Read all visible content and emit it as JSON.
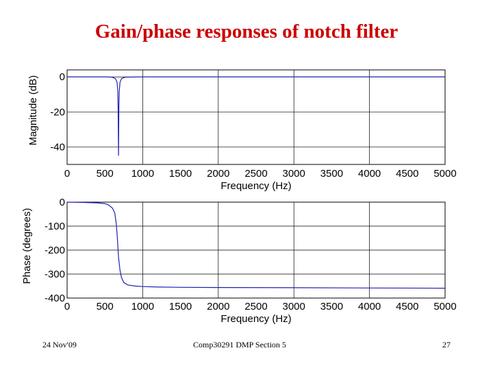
{
  "slide": {
    "title": "Gain/phase responses of notch filter",
    "footer_left": "24 Nov'09",
    "footer_center": "Comp30291 DMP Section 5",
    "footer_right": "27"
  },
  "chart_data": [
    {
      "type": "line",
      "title": "",
      "xlabel": "Frequency (Hz)",
      "ylabel": "Magnitude (dB)",
      "xlim": [
        0,
        5000
      ],
      "ylim": [
        -50,
        4
      ],
      "xticks": [
        0,
        500,
        1000,
        1500,
        2000,
        2500,
        3000,
        3500,
        4000,
        4500,
        5000
      ],
      "yticks": [
        0,
        -20,
        -40
      ],
      "grid": true,
      "line_color": "#1f1fb4",
      "series": [
        {
          "x": [
            0,
            500,
            600,
            640,
            660,
            670,
            675,
            680,
            685,
            690,
            700,
            720,
            760,
            1000,
            2000,
            3000,
            4000,
            5000
          ],
          "values": [
            0,
            0,
            -0.2,
            -1,
            -3,
            -8,
            -18,
            -45,
            -18,
            -8,
            -3,
            -1,
            -0.2,
            0,
            0,
            0,
            0,
            0
          ]
        }
      ]
    },
    {
      "type": "line",
      "title": "",
      "xlabel": "Frequency (Hz)",
      "ylabel": "Phase (degrees)",
      "xlim": [
        0,
        5000
      ],
      "ylim": [
        -400,
        0
      ],
      "xticks": [
        0,
        500,
        1000,
        1500,
        2000,
        2500,
        3000,
        3500,
        4000,
        4500,
        5000
      ],
      "yticks": [
        0,
        -100,
        -200,
        -300,
        -400
      ],
      "grid": true,
      "line_color": "#1f1fb4",
      "series": [
        {
          "x": [
            0,
            200,
            400,
            500,
            550,
            600,
            630,
            650,
            665,
            680,
            700,
            720,
            750,
            800,
            900,
            1000,
            1200,
            1500,
            2000,
            3000,
            4000,
            5000
          ],
          "values": [
            0,
            -1,
            -3,
            -6,
            -12,
            -25,
            -45,
            -90,
            -150,
            -230,
            -285,
            -315,
            -335,
            -345,
            -350,
            -352,
            -354,
            -355,
            -356,
            -357,
            -358,
            -359
          ]
        }
      ]
    }
  ]
}
